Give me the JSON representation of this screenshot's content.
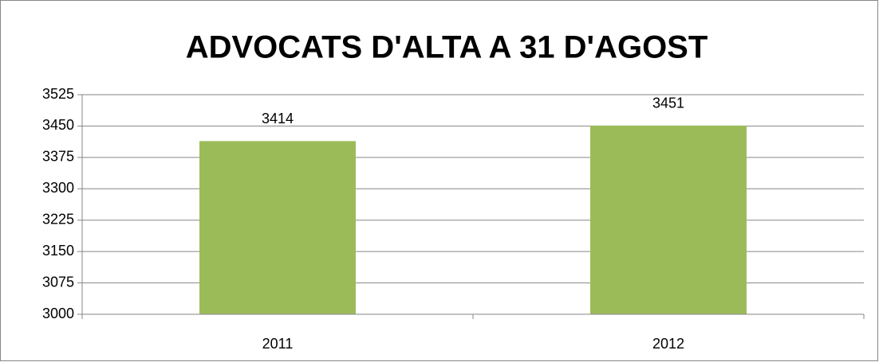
{
  "chart_data": {
    "type": "bar",
    "title": "ADVOCATS D'ALTA A 31 D'AGOST",
    "categories": [
      "2011",
      "2012"
    ],
    "values": [
      3414,
      3451
    ],
    "color": "#9bbb59",
    "ylim": [
      3000,
      3525
    ],
    "yticks": [
      3000,
      3075,
      3150,
      3225,
      3300,
      3375,
      3450,
      3525
    ],
    "grid": true
  }
}
